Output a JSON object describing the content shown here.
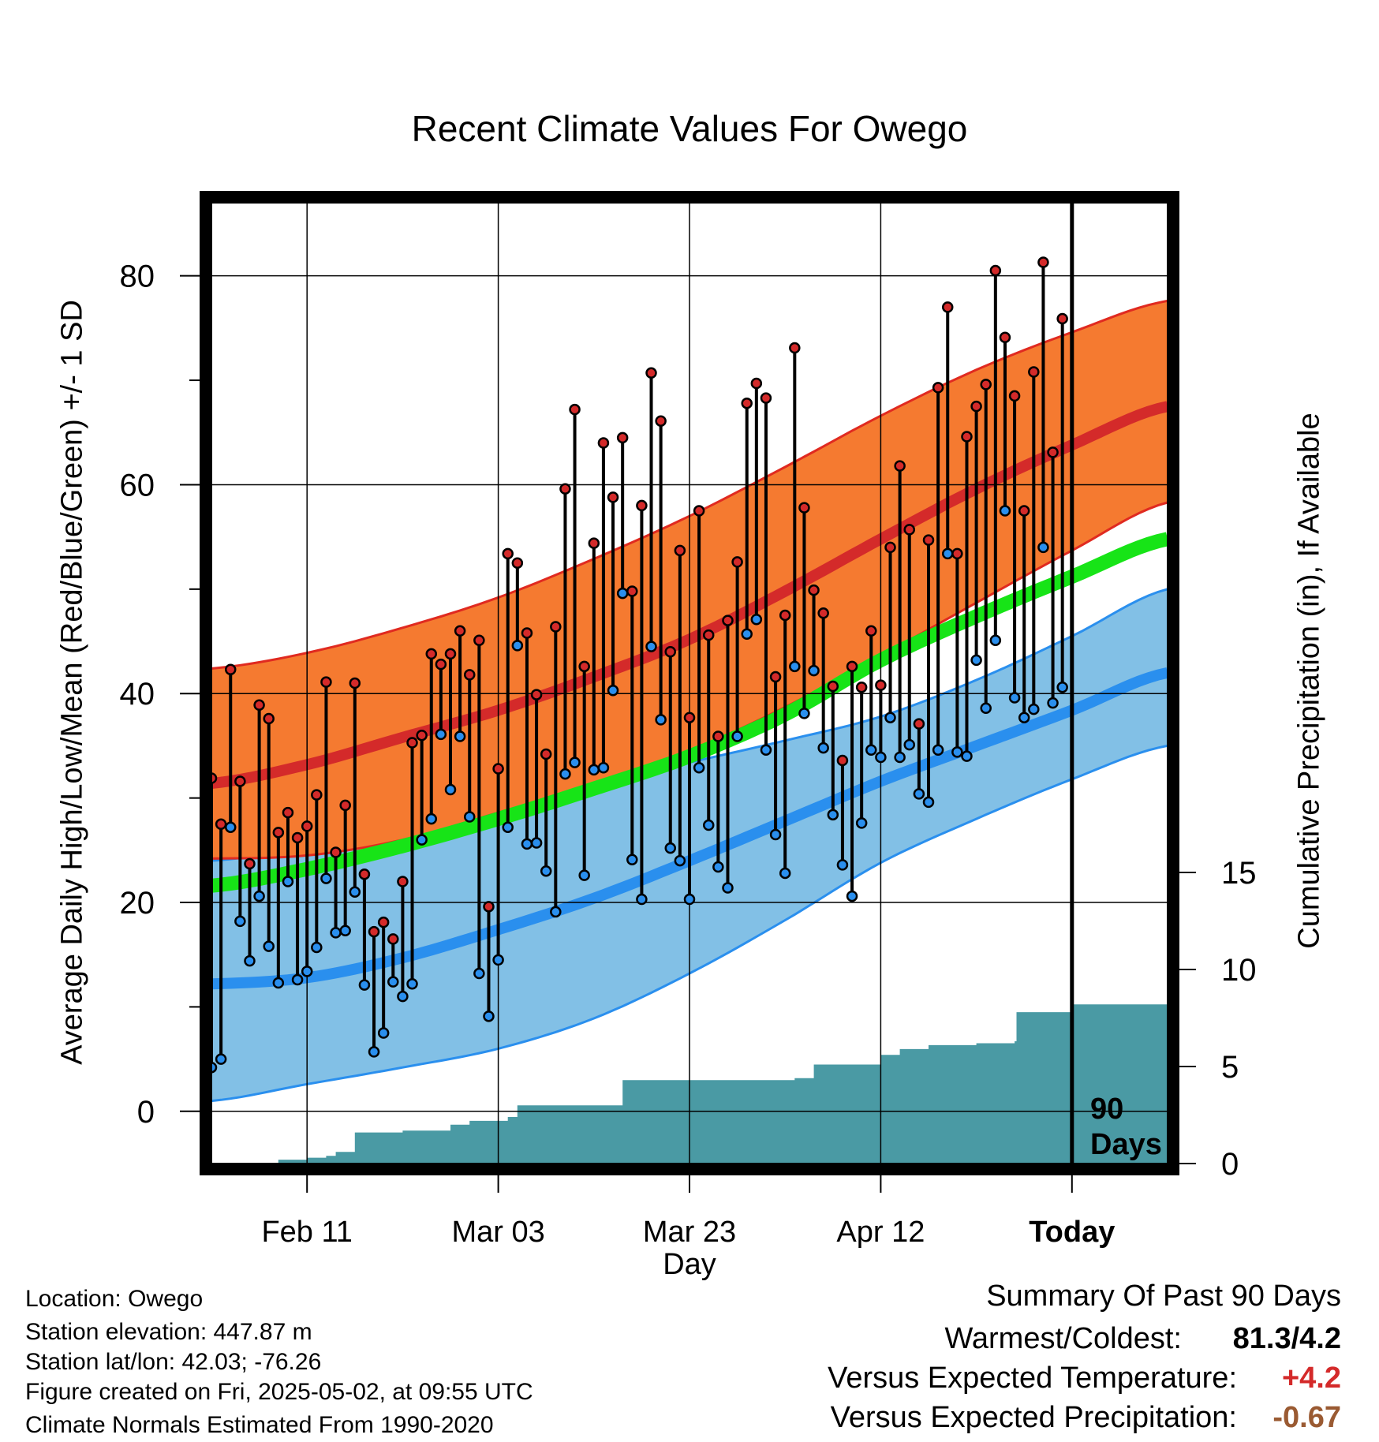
{
  "chart_data": {
    "type": "line",
    "title": "Recent Climate Values For Owego",
    "xlabel": "Day",
    "ylabel": "Average Daily High/Low/Mean (Red/Blue/Green) +/- 1 SD",
    "y2label": "Cumulative Precipitation (in), If Available",
    "ylim": [
      -5,
      87
    ],
    "yticks": [
      "0",
      "20",
      "40",
      "60",
      "80"
    ],
    "y2lim": [
      0,
      20
    ],
    "y2ticks": [
      "0",
      "5",
      "10",
      "15"
    ],
    "xlim": [
      0,
      100
    ],
    "xtick_days": [
      10,
      30,
      50,
      70,
      90
    ],
    "xtick_labels": [
      "Feb 11",
      "Mar 03",
      "Mar 23",
      "Apr 12",
      "Today"
    ],
    "today_day": 90,
    "today_label_line1": "90",
    "today_label_line2": "Days",
    "colors": {
      "high_band": "#f57a30",
      "high_edge": "#e02a20",
      "high_mean": "#d42a2a",
      "low_band": "#82c0e6",
      "low_edge": "#2a8fee",
      "low_mean": "#2a8fee",
      "mean": "#17e417",
      "precip": "#4a9aa4",
      "high_dot": "#d42a2a",
      "low_dot": "#2a8fee"
    },
    "normals": {
      "day": [
        0,
        10,
        20,
        30,
        40,
        50,
        60,
        70,
        80,
        90,
        100
      ],
      "high_mean": [
        31.4,
        33.2,
        35.8,
        38.4,
        41.6,
        45.2,
        49.8,
        54.8,
        59.6,
        63.8,
        67.5
      ],
      "high_upper": [
        42.4,
        43.9,
        46.3,
        49.2,
        52.9,
        57.0,
        61.7,
        66.6,
        71.0,
        74.6,
        77.6
      ],
      "high_lower": [
        24.2,
        24.5,
        26.0,
        28.6,
        31.3,
        34.5,
        38.7,
        43.6,
        48.7,
        53.7,
        58.3
      ],
      "low_mean": [
        12.2,
        12.8,
        14.7,
        17.4,
        20.4,
        24.0,
        27.8,
        31.6,
        35.0,
        38.4,
        42.0
      ],
      "low_upper": [
        24.0,
        25.2,
        27.1,
        28.9,
        31.2,
        33.4,
        35.5,
        37.8,
        41.3,
        45.5,
        50.0
      ],
      "low_lower": [
        1.0,
        2.6,
        4.2,
        6.0,
        8.9,
        13.2,
        18.3,
        23.8,
        28.0,
        31.8,
        35.0
      ],
      "mean": [
        21.6,
        23.2,
        25.4,
        28.0,
        30.9,
        34.0,
        38.0,
        43.2,
        47.4,
        51.2,
        54.8
      ]
    },
    "observed": {
      "highs": [
        31.9,
        27.5,
        42.3,
        31.6,
        23.7,
        38.9,
        37.6,
        26.7,
        28.6,
        26.2,
        27.3,
        30.3,
        41.1,
        24.8,
        29.3,
        41.0,
        22.7,
        17.2,
        18.1,
        16.5,
        22.0,
        35.3,
        36.0,
        43.8,
        42.8,
        43.8,
        46.0,
        41.8,
        45.1,
        19.6,
        32.8,
        53.4,
        52.5,
        45.8,
        39.9,
        34.2,
        46.4,
        59.6,
        67.2,
        42.6,
        54.4,
        64.0,
        58.8,
        64.5,
        49.8,
        58.0,
        70.7,
        66.1,
        44.0,
        53.7,
        37.7,
        57.5,
        45.6,
        35.9,
        47.0,
        52.6,
        67.8,
        69.7,
        68.3,
        41.6,
        47.5,
        73.1,
        57.8,
        49.9,
        47.7,
        40.7,
        33.6,
        42.6,
        40.6,
        46.0,
        40.8,
        54.0,
        61.8,
        55.7,
        37.1,
        54.7,
        69.3,
        77.0,
        53.4,
        64.6,
        67.5,
        69.6,
        80.5,
        74.1,
        68.5,
        57.5,
        70.8,
        81.3,
        63.1,
        75.9
      ],
      "lows": [
        4.2,
        5.0,
        27.2,
        18.2,
        14.4,
        20.6,
        15.8,
        12.3,
        22.0,
        12.6,
        13.4,
        15.7,
        22.3,
        17.1,
        17.3,
        21.0,
        12.1,
        5.7,
        7.5,
        12.4,
        11.0,
        12.2,
        26.0,
        28.0,
        36.1,
        30.8,
        35.9,
        28.2,
        13.2,
        9.1,
        14.5,
        27.2,
        44.6,
        25.6,
        25.7,
        23.0,
        19.1,
        32.3,
        33.4,
        22.6,
        32.7,
        32.9,
        40.3,
        49.6,
        24.1,
        20.3,
        44.5,
        37.5,
        25.2,
        24.0,
        20.3,
        32.9,
        27.4,
        23.4,
        21.4,
        35.9,
        45.7,
        47.1,
        34.6,
        26.5,
        22.8,
        42.6,
        38.1,
        42.2,
        34.8,
        28.4,
        23.6,
        20.6,
        27.6,
        34.6,
        33.9,
        37.7,
        33.9,
        35.1,
        30.4,
        29.6,
        34.6,
        53.4,
        34.4,
        34.0,
        43.2,
        38.6,
        45.1,
        57.5,
        39.6,
        37.7,
        38.5,
        54.0,
        39.1,
        40.6
      ]
    },
    "precip": {
      "day": [
        0,
        6,
        7,
        10,
        12,
        13,
        15,
        20,
        25,
        27,
        31,
        32,
        43,
        61,
        63,
        70,
        72,
        75,
        80,
        84,
        84.2,
        90,
        100
      ],
      "value": [
        0,
        0,
        0.2,
        0.3,
        0.4,
        0.6,
        1.6,
        1.7,
        2.0,
        2.2,
        2.4,
        3.0,
        4.3,
        4.4,
        5.1,
        5.6,
        5.9,
        6.1,
        6.2,
        6.3,
        7.8,
        8.2,
        8.2
      ]
    }
  },
  "info": {
    "location": "Location: Owego",
    "elevation": "Station elevation: 447.87 m",
    "latlon": "Station lat/lon: 42.03; -76.26",
    "created": "Figure created on Fri, 2025-05-02, at 09:55 UTC",
    "normals": "Climate Normals Estimated From 1990-2020"
  },
  "summary": {
    "title": "Summary Of Past 90 Days",
    "warmest_label": "Warmest/Coldest:",
    "warmest_value": "81.3/4.2",
    "temp_label": "Versus Expected Temperature:",
    "temp_value": "+4.2",
    "temp_color": "#d42a2a",
    "precip_label": "Versus Expected Precipitation:",
    "precip_value": "-0.67",
    "precip_color": "#9a5a32"
  }
}
